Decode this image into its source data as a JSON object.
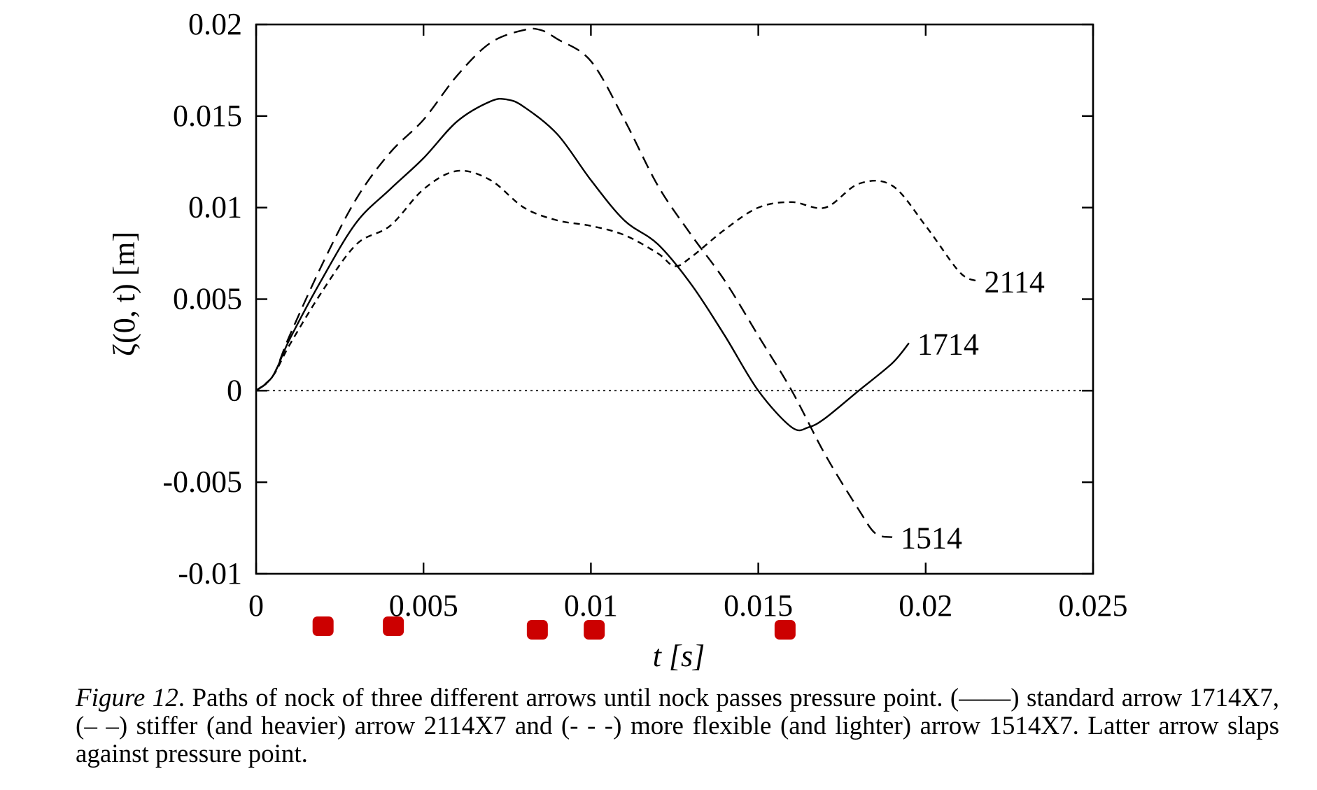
{
  "chart_data": {
    "type": "line",
    "xlabel": "t [s]",
    "ylabel": "ζ(0, t) [m]",
    "xlim": [
      0,
      0.025
    ],
    "ylim": [
      -0.01,
      0.02
    ],
    "x_ticks": [
      0,
      0.005,
      0.01,
      0.015,
      0.02,
      0.025
    ],
    "x_tick_labels": [
      "0",
      "0.005",
      "0.01",
      "0.015",
      "0.02",
      "0.025"
    ],
    "y_ticks": [
      -0.01,
      -0.005,
      0,
      0.005,
      0.01,
      0.015,
      0.02
    ],
    "y_tick_labels": [
      "-0.01",
      "-0.005",
      "0",
      "0.005",
      "0.01",
      "0.015",
      "0.02"
    ],
    "grid": false,
    "zero_line": true,
    "series": [
      {
        "name": "1714",
        "style": "solid",
        "points": [
          [
            0,
            0
          ],
          [
            0.0005,
            0.0008
          ],
          [
            0.001,
            0.0028
          ],
          [
            0.002,
            0.0062
          ],
          [
            0.003,
            0.0092
          ],
          [
            0.004,
            0.011
          ],
          [
            0.005,
            0.0127
          ],
          [
            0.006,
            0.0147
          ],
          [
            0.007,
            0.0158
          ],
          [
            0.0075,
            0.0159
          ],
          [
            0.008,
            0.0155
          ],
          [
            0.009,
            0.014
          ],
          [
            0.01,
            0.0115
          ],
          [
            0.011,
            0.0093
          ],
          [
            0.012,
            0.008
          ],
          [
            0.013,
            0.0058
          ],
          [
            0.014,
            0.003
          ],
          [
            0.015,
            0.0
          ],
          [
            0.016,
            -0.002
          ],
          [
            0.0165,
            -0.002
          ],
          [
            0.017,
            -0.0015
          ],
          [
            0.018,
            0.0
          ],
          [
            0.019,
            0.0015
          ],
          [
            0.0195,
            0.0026
          ]
        ]
      },
      {
        "name": "2114",
        "style": "short-dash",
        "points": [
          [
            0,
            0
          ],
          [
            0.0005,
            0.0008
          ],
          [
            0.001,
            0.0025
          ],
          [
            0.002,
            0.0055
          ],
          [
            0.003,
            0.008
          ],
          [
            0.004,
            0.009
          ],
          [
            0.005,
            0.011
          ],
          [
            0.006,
            0.012
          ],
          [
            0.007,
            0.0115
          ],
          [
            0.008,
            0.01
          ],
          [
            0.009,
            0.0093
          ],
          [
            0.01,
            0.009
          ],
          [
            0.011,
            0.0085
          ],
          [
            0.012,
            0.0075
          ],
          [
            0.0125,
            0.0068
          ],
          [
            0.013,
            0.0073
          ],
          [
            0.014,
            0.0088
          ],
          [
            0.015,
            0.01
          ],
          [
            0.016,
            0.0103
          ],
          [
            0.017,
            0.01
          ],
          [
            0.018,
            0.0113
          ],
          [
            0.019,
            0.0112
          ],
          [
            0.02,
            0.009
          ],
          [
            0.021,
            0.0065
          ],
          [
            0.0215,
            0.006
          ]
        ]
      },
      {
        "name": "1514",
        "style": "long-dash",
        "points": [
          [
            0,
            0
          ],
          [
            0.0005,
            0.0008
          ],
          [
            0.001,
            0.003
          ],
          [
            0.002,
            0.007
          ],
          [
            0.003,
            0.0105
          ],
          [
            0.004,
            0.013
          ],
          [
            0.005,
            0.0148
          ],
          [
            0.006,
            0.0172
          ],
          [
            0.007,
            0.019
          ],
          [
            0.008,
            0.0197
          ],
          [
            0.0085,
            0.0197
          ],
          [
            0.009,
            0.0192
          ],
          [
            0.01,
            0.018
          ],
          [
            0.011,
            0.0148
          ],
          [
            0.012,
            0.0112
          ],
          [
            0.013,
            0.0085
          ],
          [
            0.014,
            0.006
          ],
          [
            0.015,
            0.003
          ],
          [
            0.016,
            0.0
          ],
          [
            0.017,
            -0.0035
          ],
          [
            0.018,
            -0.0065
          ],
          [
            0.0185,
            -0.0078
          ],
          [
            0.019,
            -0.008
          ]
        ]
      }
    ],
    "markers": {
      "color": "#cc0000",
      "x": [
        0.002,
        0.0041,
        0.0084,
        0.0101,
        0.0158
      ]
    }
  },
  "caption": {
    "figure_label": "Figure 12",
    "text_part1": ". Paths of nock of three different arrows until nock passes pressure point. (",
    "solid_symbol": "——",
    "text_part2": ") standard arrow 1714X7, (",
    "short_dash_symbol": "– –",
    "text_part3": ") stiffer (and heavier) arrow 2114X7 and (",
    "long_dash_symbol": "- - -",
    "text_part4": ") more flexible (and lighter) arrow 1514X7. Latter arrow slaps against pressure point."
  }
}
